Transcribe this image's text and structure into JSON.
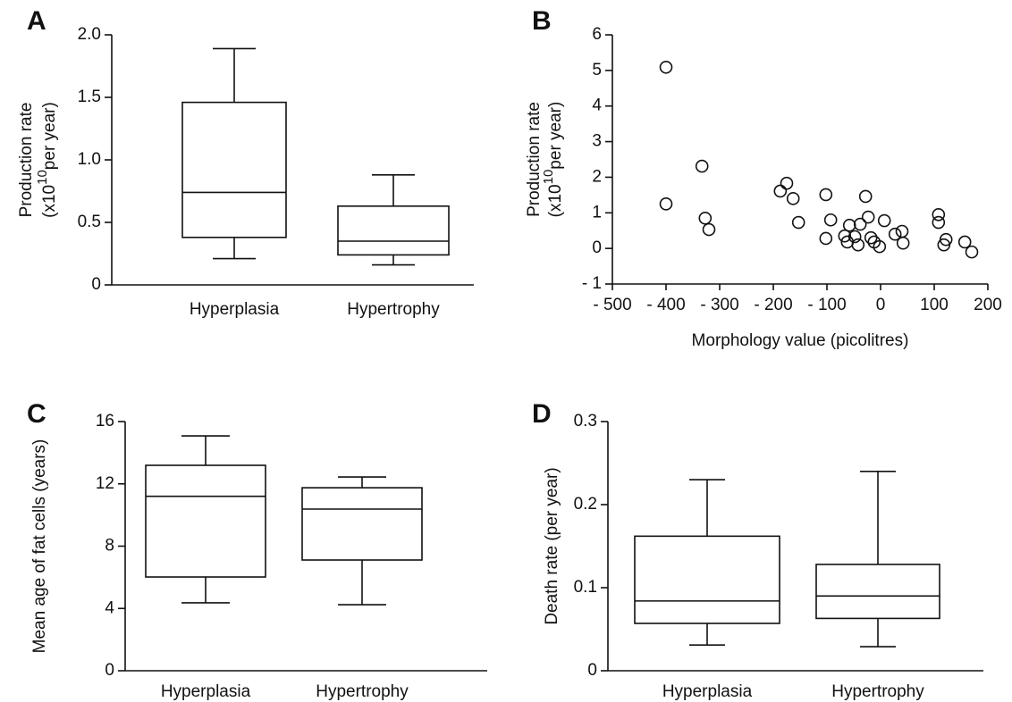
{
  "chart_data": [
    {
      "type": "box",
      "panel": "A",
      "ylabel": "Production rate",
      "ylabel_unit": {
        "prefix": "(x10",
        "exponent": "10",
        "suffix": "per year)"
      },
      "categories": [
        "Hyperplasia",
        "Hypertrophy"
      ],
      "boxes": [
        {
          "low": 0.21,
          "q1": 0.38,
          "median": 0.74,
          "q3": 1.46,
          "high": 1.89
        },
        {
          "low": 0.16,
          "q1": 0.24,
          "median": 0.35,
          "q3": 0.63,
          "high": 0.88
        }
      ],
      "ylim": [
        0,
        2.0
      ],
      "yticks": [
        0,
        0.5,
        {
          "value": 1,
          "label": "1.0"
        },
        1.5,
        {
          "value": 2,
          "label": "2.0"
        }
      ]
    },
    {
      "type": "scatter",
      "panel": "B",
      "ylabel": "Production rate",
      "ylabel_unit": {
        "prefix": "(x10",
        "exponent": "10",
        "suffix": "per year)"
      },
      "xlabel": "Morphology value (picolitres)",
      "x": [
        -400,
        -400,
        -333,
        -327,
        -320,
        -187,
        -175,
        -163,
        -153,
        -102,
        -102,
        -93,
        -67,
        -62,
        -58,
        -48,
        -42,
        -38,
        -28,
        -23,
        -18,
        -12,
        -2,
        7,
        27,
        40,
        42,
        108,
        108,
        118,
        122,
        157,
        170
      ],
      "y": [
        5.09,
        1.25,
        2.31,
        0.85,
        0.53,
        1.61,
        1.83,
        1.4,
        0.73,
        1.51,
        0.28,
        0.8,
        0.35,
        0.18,
        0.65,
        0.33,
        0.1,
        0.68,
        1.46,
        0.88,
        0.3,
        0.18,
        0.05,
        0.78,
        0.4,
        0.48,
        0.15,
        0.95,
        0.73,
        0.1,
        0.25,
        0.18,
        -0.1
      ],
      "xlim": [
        -500,
        200
      ],
      "xticks": [
        {
          "value": -500,
          "label": "- 500"
        },
        {
          "value": -400,
          "label": "- 400"
        },
        {
          "value": -300,
          "label": "- 300"
        },
        {
          "value": -200,
          "label": "- 200"
        },
        {
          "value": -100,
          "label": "- 100"
        },
        0,
        100,
        200
      ],
      "ylim": [
        -1,
        6
      ],
      "yticks": [
        {
          "value": -1,
          "label": "- 1"
        },
        0,
        1,
        2,
        3,
        4,
        5,
        6
      ]
    },
    {
      "type": "box",
      "panel": "C",
      "ylabel": "Mean age of  fat cells (years)",
      "categories": [
        "Hyperplasia",
        "Hypertrophy"
      ],
      "boxes": [
        {
          "low": 4.36,
          "q1": 6.02,
          "median": 11.2,
          "q3": 13.19,
          "high": 15.08
        },
        {
          "low": 4.24,
          "q1": 7.11,
          "median": 10.38,
          "q3": 11.75,
          "high": 12.44
        }
      ],
      "ylim": [
        0,
        16
      ],
      "yticks": [
        0,
        4,
        8,
        12,
        16
      ]
    },
    {
      "type": "box",
      "panel": "D",
      "ylabel": "Death rate (per year)",
      "categories": [
        "Hyperplasia",
        "Hypertrophy"
      ],
      "boxes": [
        {
          "low": 0.031,
          "q1": 0.057,
          "median": 0.084,
          "q3": 0.162,
          "high": 0.23
        },
        {
          "low": 0.029,
          "q1": 0.063,
          "median": 0.09,
          "q3": 0.128,
          "high": 0.24
        }
      ],
      "ylim": [
        0,
        0.3
      ],
      "yticks": [
        0,
        0.1,
        0.2,
        0.3
      ]
    }
  ]
}
